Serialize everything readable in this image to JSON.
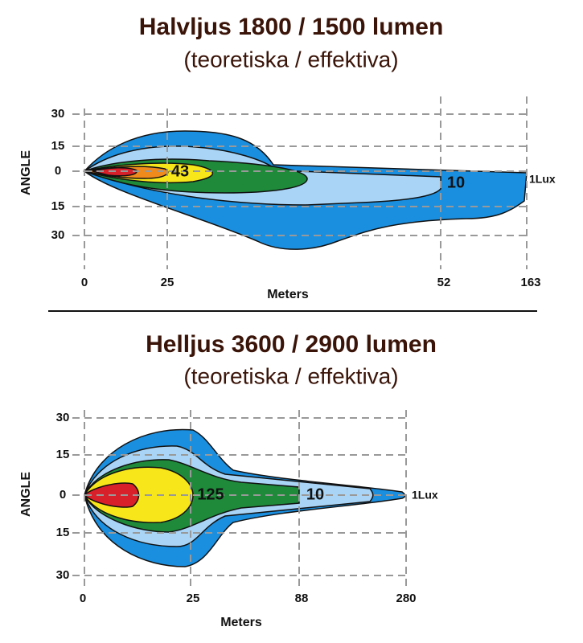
{
  "panels": [
    {
      "title": "Halvljus 1800 / 1500 lumen",
      "subtitle": "(teoretiska / effektiva)",
      "y_axis_label": "ANGLE",
      "y_ticks": [
        "30",
        "15",
        "0",
        "15",
        "30"
      ],
      "x_axis_label": "Meters",
      "x_ticks": [
        "0",
        "25",
        "52",
        "163"
      ],
      "contour_labels": [
        "43",
        "10",
        "1Lux"
      ]
    },
    {
      "title": "Helljus 3600 / 2900 lumen",
      "subtitle": "(teoretiska / effektiva)",
      "y_axis_label": "ANGLE",
      "y_ticks": [
        "30",
        "15",
        "0",
        "15",
        "30"
      ],
      "x_axis_label": "Meters",
      "x_ticks": [
        "0",
        "25",
        "88",
        "280"
      ],
      "contour_labels": [
        "125",
        "10",
        "1Lux"
      ]
    }
  ]
}
